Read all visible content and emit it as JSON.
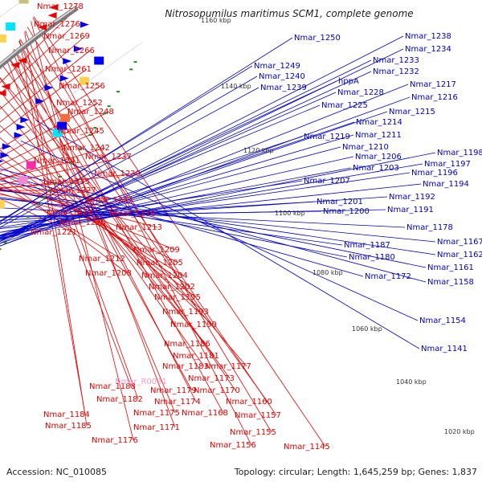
{
  "title": "Nitrosopumilus maritimus SCM1, complete genome",
  "footer": {
    "accession_label": "Accession:",
    "accession": "NC_010085",
    "topology_text": "Topology: circular; Length: 1,645,259 bp; Genes: 1,837"
  },
  "colors": {
    "reverse_label": "#e60000",
    "forward_label": "#0000cc",
    "special_label": "#ff99cc",
    "backbone": "#8c8c8c",
    "rna_marker": "#228b22"
  },
  "scale_ticks": [
    "1160 kbp",
    "1140 kbp",
    "1120 kbp",
    "1100 kbp",
    "1080 kbp",
    "1060 kbp",
    "1040 kbp",
    "1020 kbp"
  ],
  "reverse_labels": [
    "Nmar_1278",
    "Nmar_1276",
    "Nmar_1269",
    "Nmar_1266",
    "Nmar_1261",
    "Nmar_1256",
    "Nmar_1252",
    "Nmar_1248",
    "Nmar_1245",
    "Nmar_1242",
    "Nmar_1241",
    "Nmar_1237",
    "Nmar_1235",
    "Nmar_1230",
    "Nmar_1227",
    "Nmar_1223",
    "Nmar_1224",
    "Nmar_1220",
    "Nmar_1221",
    "Nmar_1218",
    "Nmar_1213",
    "Nmar_1209",
    "Nmar_1212",
    "Nmar_1205",
    "Nmar_1208",
    "Nmar_1204",
    "Nmar_1202",
    "Nmar_1195",
    "Nmar_1193",
    "Nmar_1190",
    "Nmar_1186",
    "Nmar_1181",
    "Nmar_1183",
    "Nmar_1177",
    "Nmar_1173",
    "Nmar_1179",
    "Nmar_1188",
    "Nmar_1170",
    "Nmar_1182",
    "Nmar_1174",
    "Nmar_1160",
    "Nmar_1184",
    "Nmar_1175",
    "Nmar_1168",
    "Nmar_1157",
    "Nmar_1185",
    "Nmar_1171",
    "Nmar_1155",
    "Nmar_1176",
    "Nmar_1156",
    "Nmar_1145"
  ],
  "special_labels": [
    "Nmar_R0031"
  ],
  "forward_labels": [
    "Nmar_1250",
    "Nmar_1238",
    "Nmar_1234",
    "Nmar_1249",
    "Nmar_1233",
    "Nmar_1240",
    "Nmar_1232",
    "Nmar_1239",
    "hppA",
    "Nmar_1228",
    "Nmar_1217",
    "Nmar_1216",
    "Nmar_1225",
    "Nmar_1215",
    "Nmar_1214",
    "Nmar_1219",
    "Nmar_1211",
    "Nmar_1210",
    "Nmar_1206",
    "Nmar_1198",
    "Nmar_1197",
    "Nmar_1203",
    "Nmar_1196",
    "Nmar_1207",
    "Nmar_1194",
    "Nmar_1192",
    "Nmar_1201",
    "Nmar_1191",
    "Nmar_1200",
    "Nmar_1178",
    "Nmar_1167",
    "Nmar_1187",
    "Nmar_1162",
    "Nmar_1180",
    "Nmar_1161",
    "Nmar_1172",
    "Nmar_1158",
    "Nmar_1154",
    "Nmar_1141"
  ]
}
